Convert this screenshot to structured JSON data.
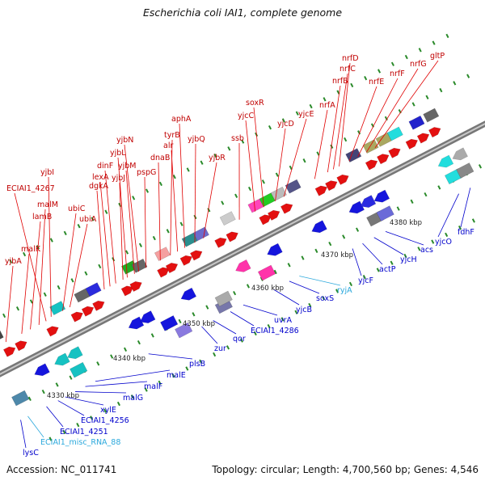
{
  "header": {
    "title": "Escherichia coli IAI1, complete genome"
  },
  "footer": {
    "accession": "Accession: NC_011741",
    "summary": "Topology: circular; Length: 4,700,560 bp; Genes: 4,546"
  },
  "colors": {
    "forward_label": "#e00000",
    "reverse_label": "#0000cc",
    "rna_label": "#33aadd",
    "backbone": "#8a8a8a",
    "tick": "#2a8a2a"
  },
  "scale_labels": [
    "4330 kbp",
    "4340 kbp",
    "4350 kbp",
    "4360 kbp",
    "4370 kbp",
    "4380 kbp"
  ],
  "upper_labels": [
    "yjbA",
    "malK",
    "lamB",
    "malM",
    "ECIAI1_4267",
    "yjbI",
    "ubiC",
    "ubiA",
    "dgkA",
    "lexA",
    "dinF",
    "yjbJ",
    "yjbL",
    "yjbM",
    "yjbN",
    "pspG",
    "dnaB",
    "tyrB",
    "alr",
    "aphA",
    "yjbQ",
    "yjbR",
    "ssb",
    "yjcC",
    "soxR",
    "yjcD",
    "yjcE",
    "nrfA",
    "nrfB",
    "nrfC",
    "nrfD",
    "nrfE",
    "nrfF",
    "nrfG",
    "gltP"
  ],
  "lower_labels": [
    "lysC",
    "ECIAI1_misc_RNA_88",
    "ECIAI1_4251",
    "ECIAI1_4256",
    "xylE",
    "malG",
    "malF",
    "malE",
    "plsB",
    "zur",
    "qor",
    "ECIAI1_4286",
    "uvrA",
    "yjcB",
    "soxS",
    "ryjA",
    "yjcF",
    "actP",
    "yjcH",
    "acs",
    "yjcO",
    "fdhF"
  ]
}
